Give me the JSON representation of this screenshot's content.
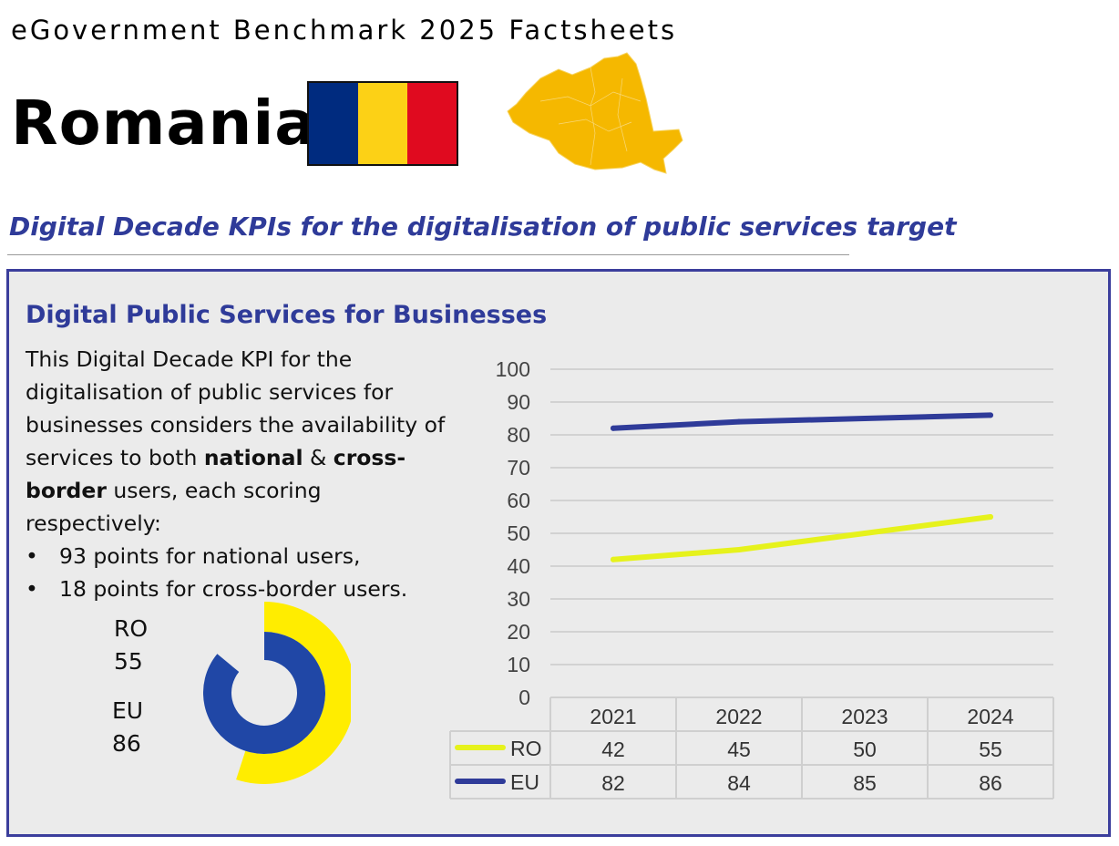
{
  "header": {
    "suptitle": "eGovernment Benchmark 2025 Factsheets",
    "country": "Romania",
    "flag_colors": [
      "#002b7f",
      "#fcd116",
      "#e00a1f"
    ],
    "map_color": "#f5b800"
  },
  "kpi_title": "Digital Decade KPIs for the digitalisation of public services target",
  "panel": {
    "title": "Digital Public Services for Businesses",
    "desc_1": "This Digital Decade KPI for the digitalisation of public services for businesses considers the availability of services to both ",
    "desc_national": "national",
    "desc_amp": " & ",
    "desc_cross": "cross-border",
    "desc_2": " users, each scoring respectively:",
    "bullet_marker": "•",
    "bullet_1": "93 points for national users,",
    "bullet_2": "18 points for cross-border users."
  },
  "donut": {
    "ro_label": "RO",
    "ro_value": 55,
    "eu_label": "EU",
    "eu_value": 86,
    "max": 100,
    "ro_color": "#ffed00",
    "eu_color": "#2047a6"
  },
  "chart_data": {
    "type": "line",
    "categories": [
      "2021",
      "2022",
      "2023",
      "2024"
    ],
    "series": [
      {
        "name": "RO",
        "values": [
          42,
          45,
          50,
          55
        ],
        "color": "#e6f21c"
      },
      {
        "name": "EU",
        "values": [
          82,
          84,
          85,
          86
        ],
        "color": "#2f3b99"
      }
    ],
    "ylim": [
      0,
      100
    ],
    "yticks": [
      0,
      10,
      20,
      30,
      40,
      50,
      60,
      70,
      80,
      90,
      100
    ],
    "grid": true,
    "legend": "data table below chart"
  }
}
